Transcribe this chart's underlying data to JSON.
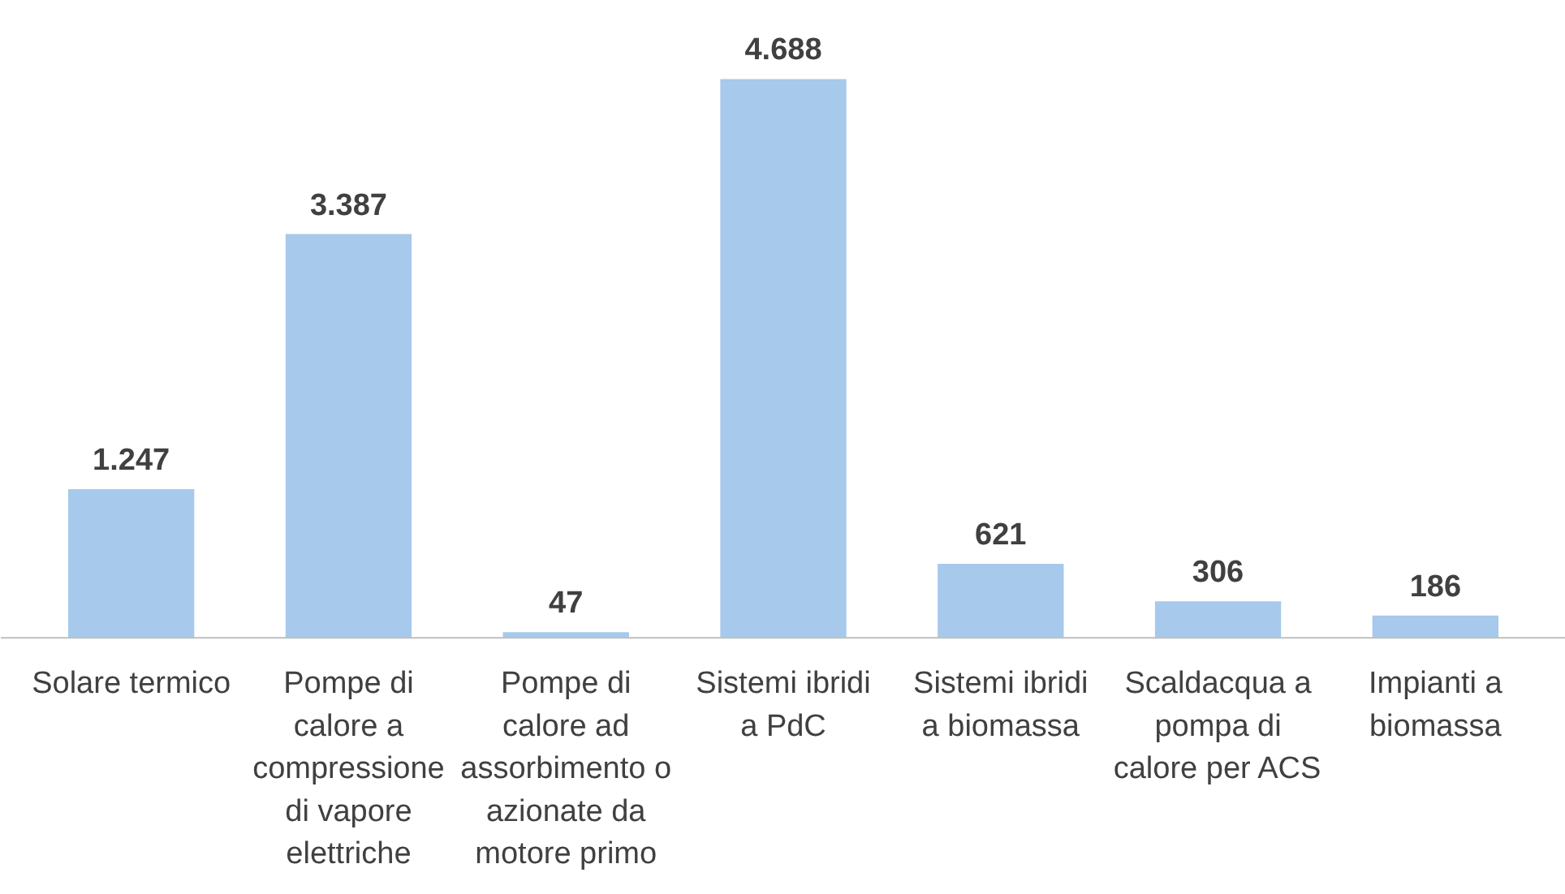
{
  "chart_data": {
    "type": "bar",
    "categories": [
      "Solare termico",
      "Pompe di calore a compressione di vapore elettriche",
      "Pompe di calore ad assorbimento o azionate da motore primo",
      "Sistemi ibridi a PdC",
      "Sistemi ibridi a biomassa",
      "Scaldacqua a pompa di calore per ACS",
      "Impianti a biomassa"
    ],
    "values": [
      1247,
      3387,
      47,
      4688,
      621,
      306,
      186
    ],
    "value_labels": [
      "1.247",
      "3.387",
      "47",
      "4.688",
      "621",
      "306",
      "186"
    ],
    "color": "#a6c9ec"
  }
}
